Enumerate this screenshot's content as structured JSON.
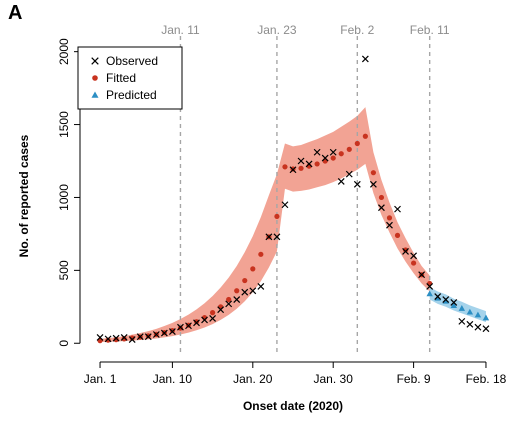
{
  "panel_label": "A",
  "colors": {
    "fitted": "#c8331f",
    "fitted_band": "#f2a394",
    "predicted": "#2c8fc4",
    "predicted_band": "#a5d3eb",
    "observed": "#000000",
    "vline": "#a6a6a6",
    "vline_label": "#8c8c8c"
  },
  "chart_data": {
    "type": "scatter",
    "xlabel": "Onset date (2020)",
    "ylabel": "No. of reported cases",
    "xlim": [
      -1,
      49
    ],
    "ylim": [
      -60,
      2080
    ],
    "x_ticks": [
      {
        "day": 0,
        "label": "Jan. 1"
      },
      {
        "day": 9,
        "label": "Jan. 10"
      },
      {
        "day": 19,
        "label": "Jan. 20"
      },
      {
        "day": 29,
        "label": "Jan. 30"
      },
      {
        "day": 39,
        "label": "Feb. 9"
      },
      {
        "day": 48,
        "label": "Feb. 18"
      }
    ],
    "y_ticks": [
      0,
      500,
      1000,
      1500,
      2000
    ],
    "grid": false,
    "legend_position": "top-left",
    "legend": [
      {
        "key": "observed",
        "label": "Observed",
        "symbol": "×"
      },
      {
        "key": "fitted",
        "label": "Fitted",
        "symbol": "●"
      },
      {
        "key": "predicted",
        "label": "Predicted",
        "symbol": "▲"
      }
    ],
    "reference_lines": [
      {
        "day": 10,
        "label": "Jan. 11"
      },
      {
        "day": 22,
        "label": "Jan. 23"
      },
      {
        "day": 32,
        "label": "Feb. 2"
      },
      {
        "day": 41,
        "label": "Feb. 11"
      }
    ],
    "observed": {
      "x": [
        0,
        1,
        2,
        3,
        4,
        5,
        6,
        7,
        8,
        9,
        10,
        11,
        12,
        13,
        14,
        15,
        16,
        17,
        18,
        19,
        20,
        21,
        22,
        23,
        24,
        25,
        26,
        27,
        28,
        29,
        30,
        31,
        32,
        33,
        34,
        35,
        36,
        37,
        38,
        39,
        40,
        41,
        42,
        43,
        44,
        45,
        46,
        47,
        48
      ],
      "y": [
        40,
        30,
        35,
        40,
        25,
        45,
        45,
        60,
        70,
        80,
        110,
        120,
        140,
        160,
        170,
        230,
        270,
        300,
        350,
        360,
        390,
        730,
        730,
        950,
        1190,
        1250,
        1230,
        1310,
        1270,
        1310,
        1110,
        1160,
        1090,
        1950,
        1090,
        930,
        810,
        920,
        630,
        600,
        470,
        390,
        320,
        300,
        280,
        150,
        130,
        110,
        100
      ]
    },
    "fitted": {
      "x": [
        0,
        1,
        2,
        3,
        4,
        5,
        6,
        7,
        8,
        9,
        10,
        11,
        12,
        13,
        14,
        15,
        16,
        17,
        18,
        19,
        20,
        21,
        22,
        23,
        24,
        25,
        26,
        27,
        28,
        29,
        30,
        31,
        32,
        33,
        34,
        35,
        36,
        37,
        38,
        39,
        40,
        41
      ],
      "y": [
        18,
        21,
        25,
        30,
        36,
        43,
        51,
        61,
        73,
        87,
        104,
        124,
        148,
        176,
        210,
        250,
        300,
        360,
        430,
        510,
        610,
        730,
        870,
        1210,
        1195,
        1200,
        1215,
        1230,
        1250,
        1270,
        1300,
        1330,
        1370,
        1420,
        1170,
        1000,
        860,
        740,
        640,
        550,
        470,
        410
      ],
      "lower": [
        8,
        10,
        12,
        15,
        18,
        22,
        27,
        33,
        40,
        49,
        60,
        73,
        89,
        108,
        131,
        160,
        195,
        237,
        288,
        350,
        425,
        520,
        630,
        1060,
        1040,
        1045,
        1055,
        1070,
        1085,
        1105,
        1130,
        1160,
        1190,
        1230,
        1030,
        880,
        760,
        650,
        560,
        480,
        410,
        355
      ],
      "upper": [
        30,
        35,
        41,
        49,
        59,
        70,
        83,
        99,
        118,
        140,
        166,
        196,
        232,
        274,
        324,
        382,
        450,
        530,
        625,
        735,
        865,
        1015,
        1160,
        1370,
        1350,
        1360,
        1380,
        1400,
        1425,
        1450,
        1485,
        1520,
        1560,
        1620,
        1310,
        1120,
        965,
        830,
        720,
        620,
        530,
        465
      ]
    },
    "predicted": {
      "x": [
        41,
        42,
        43,
        44,
        45,
        46,
        47,
        48
      ],
      "y": [
        340,
        310,
        290,
        260,
        240,
        215,
        195,
        175
      ],
      "lower": [
        300,
        270,
        250,
        225,
        205,
        185,
        165,
        145
      ],
      "upper": [
        385,
        355,
        335,
        305,
        285,
        260,
        240,
        220
      ]
    }
  }
}
